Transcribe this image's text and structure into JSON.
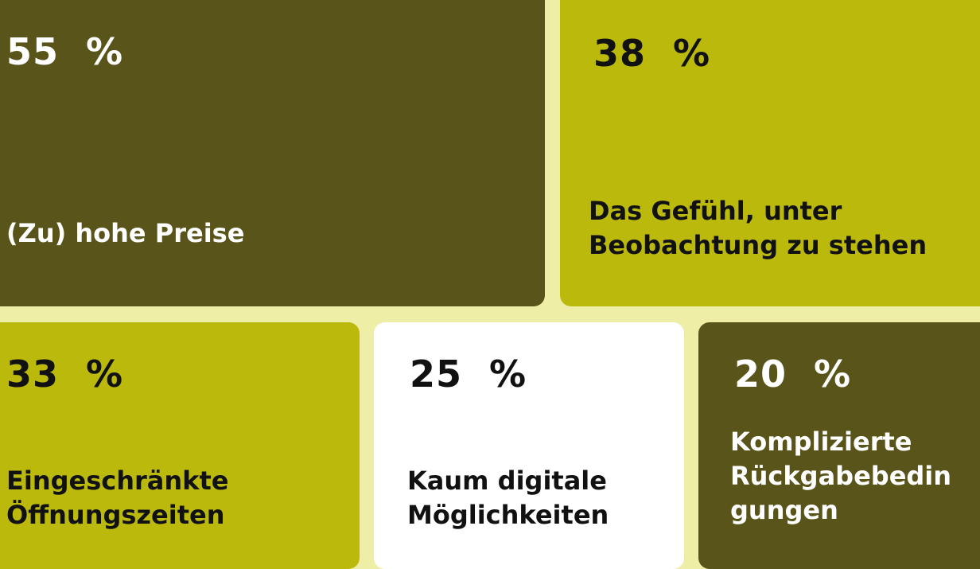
{
  "chart_data": {
    "type": "treemap",
    "unit": "%",
    "items": [
      {
        "label": "(Zu) hohe Preise",
        "value": 55,
        "value_text": "55  %",
        "bg": "#58541a",
        "fg": "#ffffff"
      },
      {
        "label": "Das Gefühl, unter\nBeobachtung zu stehen",
        "value": 38,
        "value_text": "38  %",
        "bg": "#bcb90d",
        "fg": "#111111"
      },
      {
        "label": "Eingeschränkte\nÖffnungszeiten",
        "value": 33,
        "value_text": "33  %",
        "bg": "#bcb90d",
        "fg": "#111111"
      },
      {
        "label": "Kaum digitale\nMöglichkeiten",
        "value": 25,
        "value_text": "25  %",
        "bg": "#ffffff",
        "fg": "#111111"
      },
      {
        "label": "Komplizierte\nRückgabebedin\ngungen",
        "value": 20,
        "value_text": "20  %",
        "bg": "#58541a",
        "fg": "#ffffff"
      }
    ]
  }
}
